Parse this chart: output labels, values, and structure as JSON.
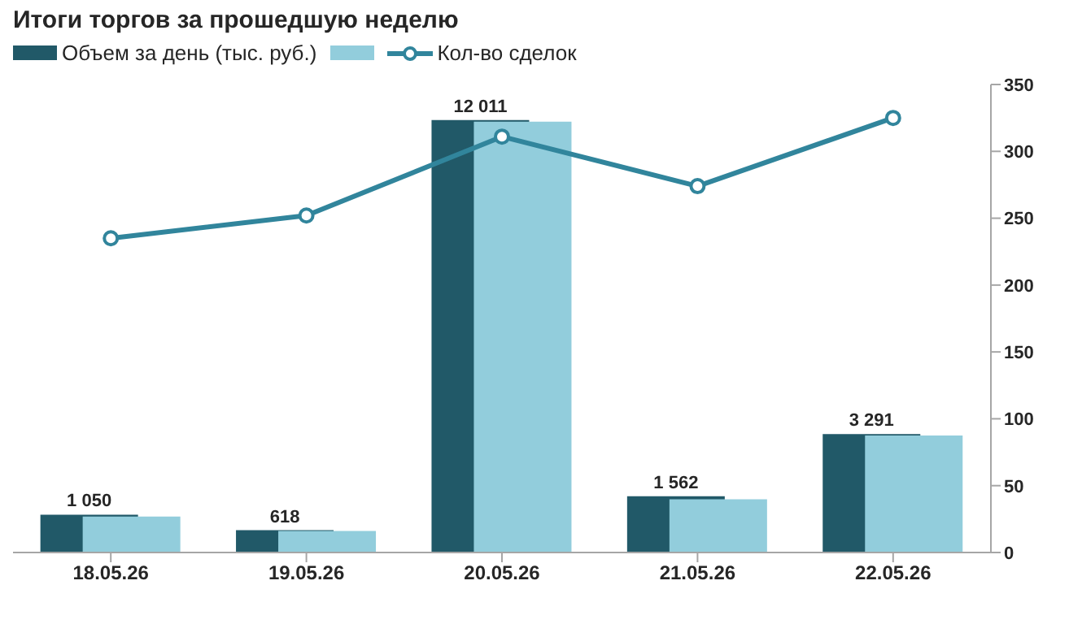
{
  "chart_data": {
    "type": "bar",
    "title": "Итоги торгов за прошедшую неделю",
    "categories": [
      "18.05.26",
      "19.05.26",
      "20.05.26",
      "21.05.26",
      "22.05.26"
    ],
    "series": [
      {
        "name": "Объем за день (тыс. руб.)",
        "color": "#215968",
        "values": [
          1050,
          618,
          12011,
          1562,
          3291
        ],
        "data_labels": true
      },
      {
        "color": "#92cddc",
        "values": [
          1000,
          600,
          11970,
          1480,
          3250
        ]
      },
      {
        "type": "line",
        "name": "Кол-во сделок",
        "color": "#31859c",
        "axis": "y2",
        "values": [
          235,
          252,
          311,
          274,
          325
        ],
        "marker": "circle"
      }
    ],
    "ylim": [
      0,
      13000
    ],
    "y2lim": [
      0,
      350
    ],
    "y2ticks": [
      0,
      50,
      100,
      150,
      200,
      250,
      300,
      350
    ],
    "legend": "top left"
  }
}
